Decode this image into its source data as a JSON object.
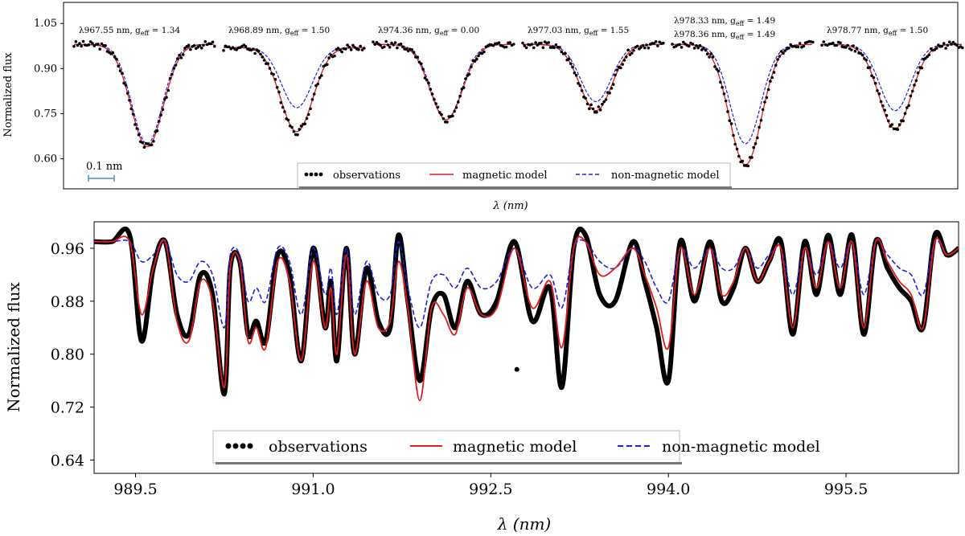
{
  "chart_data": [
    {
      "type": "line",
      "panel": "top",
      "ylabel": "Normalized flux",
      "xlabel": "λ (nm)",
      "ylim": [
        0.5,
        1.12
      ],
      "yticks": [
        "1.05",
        "0.90",
        "0.75",
        "0.60"
      ],
      "ytick_values": [
        1.05,
        0.9,
        0.75,
        0.6
      ],
      "scale_bar_label": "0.1 nm",
      "legend": [
        "observations",
        "magnetic model",
        "non-magnetic model"
      ],
      "lines": [
        {
          "labels": [
            "λ967.55 nm, g_eff = 1.34"
          ],
          "depth_magnetic": 0.64,
          "depth_nonmagnetic": 0.65,
          "continuum": 0.98
        },
        {
          "labels": [
            "λ968.89 nm, g_eff = 1.50"
          ],
          "depth_magnetic": 0.69,
          "depth_nonmagnetic": 0.77,
          "continuum": 0.97
        },
        {
          "labels": [
            "λ974.36 nm, g_eff = 0.00"
          ],
          "depth_magnetic": 0.73,
          "depth_nonmagnetic": 0.73,
          "continuum": 0.98
        },
        {
          "labels": [
            "λ977.03 nm, g_eff = 1.55"
          ],
          "depth_magnetic": 0.76,
          "depth_nonmagnetic": 0.79,
          "continuum": 0.98
        },
        {
          "labels": [
            "λ978.33 nm, g_eff = 1.49",
            "λ978.36 nm, g_eff = 1.49"
          ],
          "depth_magnetic": 0.58,
          "depth_nonmagnetic": 0.65,
          "continuum": 0.98
        },
        {
          "labels": [
            "λ978.77 nm, g_eff = 1.50"
          ],
          "depth_magnetic": 0.7,
          "depth_nonmagnetic": 0.76,
          "continuum": 0.98
        }
      ]
    },
    {
      "type": "line",
      "panel": "bottom",
      "ylabel": "Normalized flux",
      "xlabel": "λ (nm)",
      "xlim": [
        989.15,
        996.45
      ],
      "ylim": [
        0.62,
        1.0
      ],
      "xticks": [
        "989.5",
        "991.0",
        "992.5",
        "994.0",
        "995.5"
      ],
      "xtick_values": [
        989.5,
        991.0,
        992.5,
        994.0,
        995.5
      ],
      "yticks": [
        "0.96",
        "0.88",
        "0.80",
        "0.72",
        "0.64"
      ],
      "ytick_values": [
        0.96,
        0.88,
        0.8,
        0.72,
        0.64
      ],
      "legend": [
        "observations",
        "magnetic model",
        "non-magnetic model"
      ],
      "series": [
        {
          "name": "observations",
          "x": [
            989.15,
            989.3,
            989.45,
            989.55,
            989.65,
            989.75,
            989.85,
            989.95,
            990.05,
            990.15,
            990.25,
            990.3,
            990.38,
            990.45,
            990.52,
            990.6,
            990.7,
            990.8,
            990.9,
            991.0,
            991.1,
            991.15,
            991.2,
            991.28,
            991.35,
            991.45,
            991.55,
            991.65,
            991.72,
            991.8,
            991.9,
            992.0,
            992.1,
            992.2,
            992.3,
            992.42,
            992.55,
            992.7,
            992.85,
            993.0,
            993.1,
            993.2,
            993.3,
            993.42,
            993.55,
            993.7,
            993.8,
            993.9,
            994.0,
            994.1,
            994.22,
            994.35,
            994.45,
            994.55,
            994.65,
            994.75,
            994.85,
            994.95,
            995.05,
            995.15,
            995.25,
            995.35,
            995.45,
            995.55,
            995.65,
            995.75,
            995.85,
            995.95,
            996.05,
            996.15,
            996.25,
            996.35,
            996.45
          ],
          "y": [
            0.97,
            0.97,
            0.98,
            0.82,
            0.93,
            0.97,
            0.86,
            0.83,
            0.92,
            0.89,
            0.74,
            0.93,
            0.94,
            0.83,
            0.85,
            0.82,
            0.95,
            0.92,
            0.79,
            0.96,
            0.84,
            0.91,
            0.79,
            0.96,
            0.8,
            0.93,
            0.85,
            0.84,
            0.98,
            0.88,
            0.76,
            0.87,
            0.89,
            0.84,
            0.91,
            0.86,
            0.88,
            0.97,
            0.85,
            0.9,
            0.75,
            0.96,
            0.98,
            0.89,
            0.88,
            0.97,
            0.91,
            0.84,
            0.76,
            0.97,
            0.88,
            0.97,
            0.88,
            0.9,
            0.96,
            0.91,
            0.94,
            0.97,
            0.83,
            0.97,
            0.89,
            0.98,
            0.89,
            0.98,
            0.83,
            0.97,
            0.93,
            0.9,
            0.88,
            0.84,
            0.98,
            0.95,
            0.96
          ]
        },
        {
          "name": "magnetic model",
          "x": [
            989.15,
            989.3,
            989.45,
            989.55,
            989.65,
            989.75,
            989.85,
            989.95,
            990.05,
            990.15,
            990.25,
            990.3,
            990.38,
            990.45,
            990.52,
            990.6,
            990.7,
            990.8,
            990.9,
            991.0,
            991.1,
            991.15,
            991.2,
            991.28,
            991.35,
            991.45,
            991.55,
            991.65,
            991.72,
            991.8,
            991.9,
            992.0,
            992.1,
            992.2,
            992.3,
            992.42,
            992.55,
            992.7,
            992.85,
            993.0,
            993.1,
            993.2,
            993.3,
            993.42,
            993.55,
            993.7,
            993.8,
            993.9,
            994.0,
            994.1,
            994.22,
            994.35,
            994.45,
            994.55,
            994.65,
            994.75,
            994.85,
            994.95,
            995.05,
            995.15,
            995.25,
            995.35,
            995.45,
            995.55,
            995.65,
            995.75,
            995.85,
            995.95,
            996.05,
            996.15,
            996.25,
            996.35,
            996.45
          ],
          "y": [
            0.97,
            0.97,
            0.97,
            0.86,
            0.93,
            0.97,
            0.85,
            0.82,
            0.91,
            0.88,
            0.75,
            0.93,
            0.94,
            0.82,
            0.84,
            0.81,
            0.94,
            0.91,
            0.79,
            0.94,
            0.84,
            0.9,
            0.8,
            0.95,
            0.8,
            0.91,
            0.84,
            0.85,
            0.94,
            0.87,
            0.73,
            0.87,
            0.86,
            0.83,
            0.9,
            0.86,
            0.87,
            0.96,
            0.87,
            0.91,
            0.81,
            0.96,
            0.97,
            0.92,
            0.93,
            0.96,
            0.92,
            0.87,
            0.81,
            0.96,
            0.89,
            0.96,
            0.89,
            0.91,
            0.96,
            0.91,
            0.94,
            0.96,
            0.84,
            0.96,
            0.9,
            0.97,
            0.9,
            0.97,
            0.84,
            0.97,
            0.94,
            0.91,
            0.89,
            0.84,
            0.97,
            0.95,
            0.96
          ]
        },
        {
          "name": "non-magnetic model",
          "x": [
            989.15,
            989.3,
            989.45,
            989.55,
            989.65,
            989.75,
            989.85,
            989.95,
            990.05,
            990.15,
            990.25,
            990.3,
            990.38,
            990.45,
            990.52,
            990.6,
            990.7,
            990.8,
            990.9,
            991.0,
            991.1,
            991.15,
            991.2,
            991.28,
            991.35,
            991.45,
            991.55,
            991.65,
            991.72,
            991.8,
            991.9,
            992.0,
            992.1,
            992.2,
            992.3,
            992.42,
            992.55,
            992.7,
            992.85,
            993.0,
            993.1,
            993.2,
            993.3,
            993.42,
            993.55,
            993.7,
            993.8,
            993.9,
            994.0,
            994.1,
            994.22,
            994.35,
            994.45,
            994.55,
            994.65,
            994.75,
            994.85,
            994.95,
            995.05,
            995.15,
            995.25,
            995.35,
            995.45,
            995.55,
            995.65,
            995.75,
            995.85,
            995.95,
            996.05,
            996.15,
            996.25,
            996.35,
            996.45
          ],
          "y": [
            0.97,
            0.97,
            0.97,
            0.94,
            0.95,
            0.97,
            0.92,
            0.91,
            0.94,
            0.92,
            0.84,
            0.95,
            0.95,
            0.88,
            0.9,
            0.88,
            0.96,
            0.94,
            0.86,
            0.96,
            0.89,
            0.93,
            0.86,
            0.96,
            0.86,
            0.94,
            0.89,
            0.89,
            0.97,
            0.9,
            0.84,
            0.91,
            0.92,
            0.9,
            0.93,
            0.9,
            0.91,
            0.96,
            0.9,
            0.92,
            0.87,
            0.96,
            0.97,
            0.94,
            0.93,
            0.96,
            0.94,
            0.9,
            0.88,
            0.96,
            0.93,
            0.96,
            0.93,
            0.93,
            0.96,
            0.93,
            0.95,
            0.96,
            0.89,
            0.96,
            0.92,
            0.97,
            0.93,
            0.97,
            0.89,
            0.97,
            0.95,
            0.93,
            0.92,
            0.89,
            0.97,
            0.95,
            0.96
          ]
        }
      ]
    }
  ],
  "colors": {
    "observations": "#000000",
    "magnetic": "#e41a1c",
    "nonmagnetic": "#1f1fe0",
    "scalebar": "#4a90c0"
  }
}
